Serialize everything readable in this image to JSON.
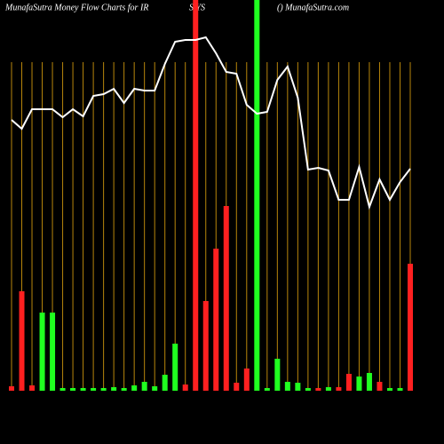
{
  "chart_data": {
    "type": "bar-line",
    "title": "MunafaSutra  Money Flow  Charts for IR",
    "title_part2": "S YS",
    "source": "() MunafaSutra.com",
    "categories": [
      null,
      null,
      null,
      null,
      null,
      null,
      null,
      null,
      null,
      null,
      null,
      null,
      null,
      null,
      null,
      null,
      null,
      null,
      null,
      null,
      null,
      null,
      null,
      null,
      null,
      null,
      null,
      null,
      null,
      null,
      null,
      null,
      null,
      null,
      null,
      null,
      null,
      null,
      null,
      null
    ],
    "series": [
      {
        "type": "bar",
        "values": [
          5,
          112,
          6,
          88,
          88,
          3,
          3,
          3,
          3,
          3,
          4,
          3,
          6,
          10,
          5,
          18,
          53,
          7,
          440,
          101,
          160,
          208,
          9,
          25,
          440,
          3,
          36,
          10,
          9,
          3,
          3,
          4,
          4,
          19,
          16,
          20,
          10,
          3,
          3,
          143
        ],
        "colors": [
          "#ff2020",
          "#ff2020",
          "#ff2020",
          "#20ff20",
          "#20ff20",
          "#20ff20",
          "#20ff20",
          "#20ff20",
          "#20ff20",
          "#20ff20",
          "#20ff20",
          "#20ff20",
          "#20ff20",
          "#20ff20",
          "#20ff20",
          "#20ff20",
          "#20ff20",
          "#ff2020",
          "#ff2020",
          "#ff2020",
          "#ff2020",
          "#ff2020",
          "#ff2020",
          "#ff2020",
          "#20ff20",
          "#20ff20",
          "#20ff20",
          "#20ff20",
          "#20ff20",
          "#20ff20",
          "#ff2020",
          "#20ff20",
          "#ff2020",
          "#ff2020",
          "#20ff20",
          "#20ff20",
          "#ff2020",
          "#20ff20",
          "#20ff20",
          "#ff2020"
        ]
      },
      {
        "type": "line",
        "color": "#ffffff",
        "values": [
          305,
          295,
          317,
          317,
          317,
          308,
          317,
          309,
          332,
          334,
          340,
          324,
          340,
          338,
          338,
          368,
          393,
          395,
          395,
          398,
          380,
          359,
          357,
          322,
          312,
          314,
          350,
          365,
          330,
          249,
          251,
          248,
          215,
          215,
          252,
          207,
          238,
          215,
          235,
          250
        ]
      }
    ],
    "ylim": [
      0,
      440
    ],
    "grid": true,
    "grid_color": "#b8860b"
  }
}
